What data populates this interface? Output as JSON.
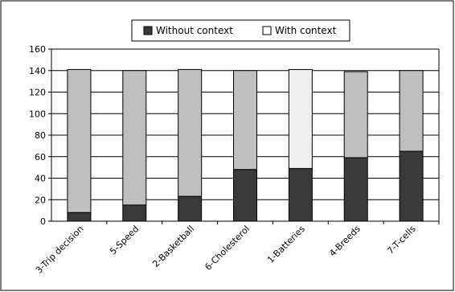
{
  "chart_data": {
    "type": "bar",
    "stacked": true,
    "categories": [
      "3-Trip decision",
      "5-Speed",
      "2-Basketball",
      "6-Cholesterol",
      "1-Batteries",
      "4-Breeds",
      "7-T-cells"
    ],
    "series": [
      {
        "name": "Without context",
        "values": [
          8,
          15,
          23,
          48,
          49,
          59,
          65
        ]
      },
      {
        "name": "With context",
        "values": [
          133,
          125,
          118,
          92,
          92,
          80,
          75
        ]
      }
    ],
    "xlabel": "",
    "ylabel": "",
    "ylim": [
      0,
      160
    ],
    "yticks": [
      0,
      20,
      40,
      60,
      80,
      100,
      120,
      140,
      160
    ],
    "grid": true,
    "legend_position": "top-center",
    "colors": {
      "without_context": "#3a3a3a",
      "with_context": "#bfbfbf",
      "with_context_highlight": "#eeeeee",
      "highlight_category": "1-Batteries"
    }
  }
}
